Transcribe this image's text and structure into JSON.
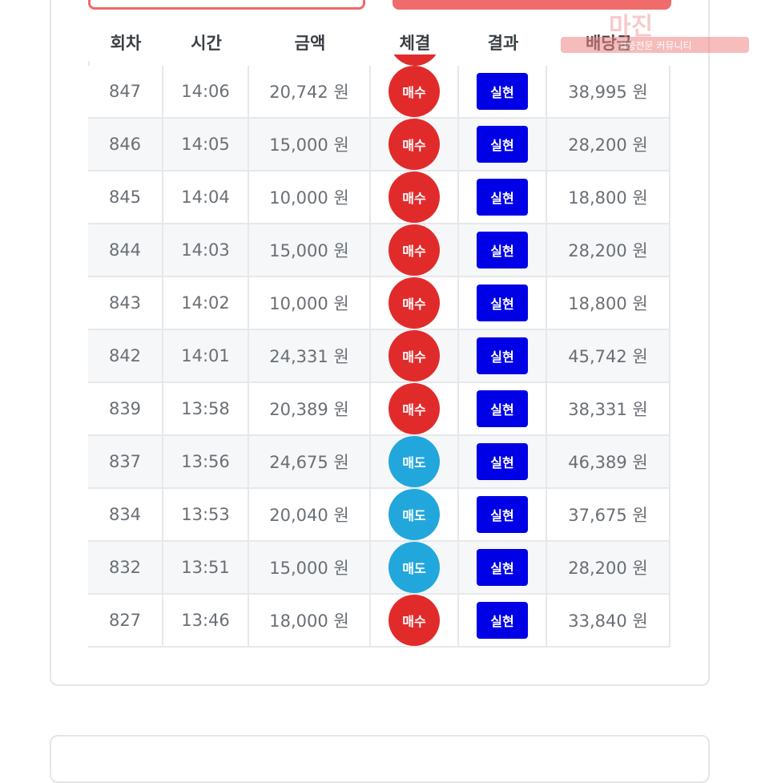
{
  "watermark": {
    "logo": "마진",
    "tagline": "검증전문 커뮤니티"
  },
  "table": {
    "columns": [
      "회차",
      "시간",
      "금액",
      "체결",
      "결과",
      "배당금"
    ],
    "rows": [
      [
        "847",
        "14:06",
        "20,742 원",
        "매수",
        "실현",
        "38,995 원"
      ],
      [
        "846",
        "14:05",
        "15,000 원",
        "매수",
        "실현",
        "28,200 원"
      ],
      [
        "845",
        "14:04",
        "10,000 원",
        "매수",
        "실현",
        "18,800 원"
      ],
      [
        "844",
        "14:03",
        "15,000 원",
        "매수",
        "실현",
        "28,200 원"
      ],
      [
        "843",
        "14:02",
        "10,000 원",
        "매수",
        "실현",
        "18,800 원"
      ],
      [
        "842",
        "14:01",
        "24,331 원",
        "매수",
        "실현",
        "45,742 원"
      ],
      [
        "839",
        "13:58",
        "20,389 원",
        "매수",
        "실현",
        "38,331 원"
      ],
      [
        "837",
        "13:56",
        "24,675 원",
        "매도",
        "실현",
        "46,389 원"
      ],
      [
        "834",
        "13:53",
        "20,040 원",
        "매도",
        "실현",
        "37,675 원"
      ],
      [
        "832",
        "13:51",
        "15,000 원",
        "매도",
        "실현",
        "28,200 원"
      ],
      [
        "827",
        "13:46",
        "18,000 원",
        "매수",
        "실현",
        "33,840 원"
      ]
    ]
  }
}
